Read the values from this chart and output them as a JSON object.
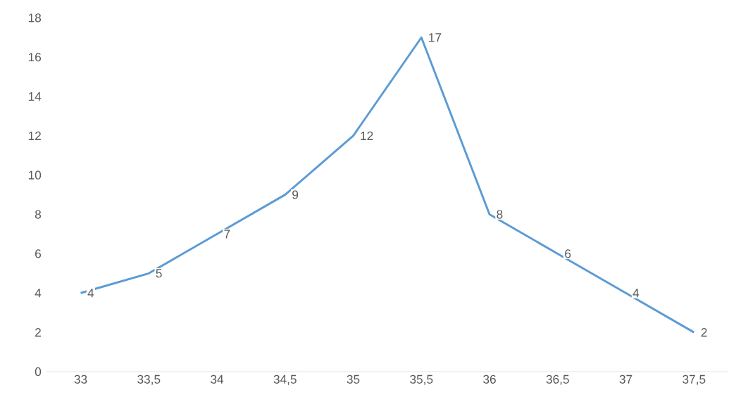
{
  "chart_data": {
    "type": "line",
    "categories": [
      "33",
      "33,5",
      "34",
      "34,5",
      "35",
      "35,5",
      "36",
      "36,5",
      "37",
      "37,5"
    ],
    "values": [
      4,
      5,
      7,
      9,
      12,
      17,
      8,
      6,
      4,
      2
    ],
    "color": "#5b9bd5",
    "ylim": [
      0,
      18
    ],
    "yticks": [
      0,
      2,
      4,
      6,
      8,
      10,
      12,
      14,
      16,
      18
    ],
    "grid": false,
    "marker": "none",
    "line_style": "solid",
    "data_labels": true
  }
}
